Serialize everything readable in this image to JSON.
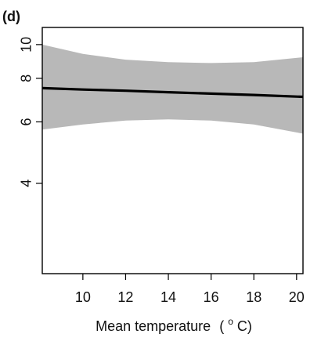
{
  "panel_label": "(d)",
  "chart_data": {
    "type": "line",
    "title": "",
    "xlabel": "Mean temperature",
    "xlabel_unit_superscript": "o",
    "xlabel_unit": " C)",
    "ylabel": "",
    "xlim": [
      8.1,
      20.3
    ],
    "ylim": [
      2.2,
      11.2
    ],
    "y_scale": "log",
    "x_ticks": [
      10,
      12,
      14,
      16,
      18,
      20
    ],
    "y_ticks": [
      4,
      6,
      8,
      10
    ],
    "x_tick_labels": [
      "10",
      "12",
      "14",
      "16",
      "18",
      "20"
    ],
    "y_tick_labels": [
      "4",
      "6",
      "8",
      "10"
    ],
    "grid": false,
    "legend": "none",
    "colors": {
      "band": "#b8b8b8",
      "line": "#000000",
      "axis": "#000000"
    },
    "series": [
      {
        "type": "line",
        "x": [
          8.1,
          10,
          12,
          14,
          16,
          18,
          20.3
        ],
        "y": [
          7.5,
          7.43,
          7.37,
          7.3,
          7.23,
          7.17,
          7.08
        ]
      },
      {
        "type": "band",
        "x": [
          8.1,
          10,
          12,
          14,
          16,
          18,
          20.3
        ],
        "upper": [
          10.0,
          9.4,
          9.05,
          8.9,
          8.85,
          8.9,
          9.2
        ],
        "lower": [
          5.7,
          5.9,
          6.05,
          6.1,
          6.05,
          5.9,
          5.55
        ]
      }
    ]
  }
}
